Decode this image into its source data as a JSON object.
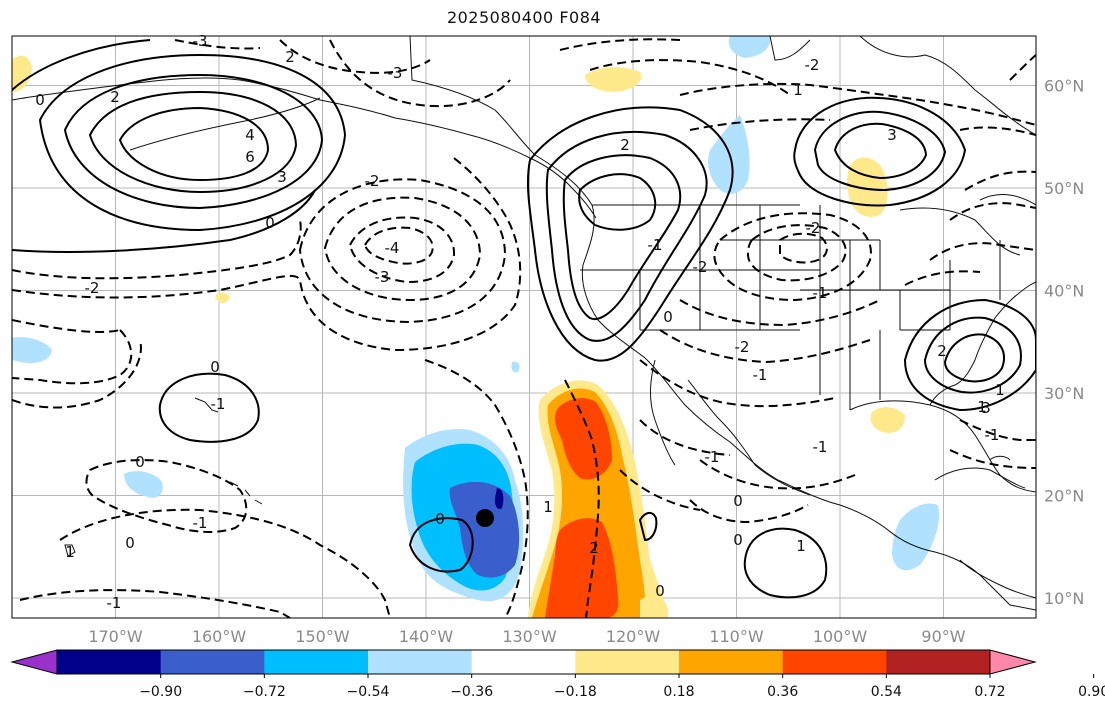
{
  "title": "2025080400 F084",
  "map": {
    "lon_ticks": [
      "170°W",
      "160°W",
      "150°W",
      "140°W",
      "130°W",
      "120°W",
      "110°W",
      "100°W",
      "90°W"
    ],
    "lat_ticks": [
      "60°N",
      "50°N",
      "40°N",
      "30°N",
      "20°N",
      "10°N"
    ],
    "storm_marker": {
      "lon": -134.3,
      "lat": 17.8
    },
    "contour_labels": [
      "-3",
      "2",
      "-3",
      "0",
      "2",
      "4",
      "3",
      "6",
      "-2",
      "0",
      "-4",
      "-3",
      "-2",
      "0",
      "-1",
      "-1",
      "0",
      "1",
      "-1",
      "2",
      "3",
      "1",
      "-2",
      "-2",
      "-1",
      "0",
      "0",
      "2",
      "-1",
      "-1",
      "2",
      "3",
      "1",
      "0",
      "-2",
      "-2",
      "-1",
      "0",
      "1",
      "-1",
      "0",
      "0",
      "1",
      "-1",
      "1"
    ]
  },
  "colorbar": {
    "labels": [
      "−0.90",
      "−0.72",
      "−0.54",
      "−0.36",
      "−0.18",
      "0.18",
      "0.36",
      "0.54",
      "0.72",
      "0.90"
    ],
    "colors": [
      "#9932cc",
      "#00008b",
      "#3a5fcd",
      "#00bfff",
      "#b0e2ff",
      "#ffffff",
      "#ffe98a",
      "#ffa500",
      "#ff4500",
      "#b22222",
      "#ff88aa"
    ]
  }
}
